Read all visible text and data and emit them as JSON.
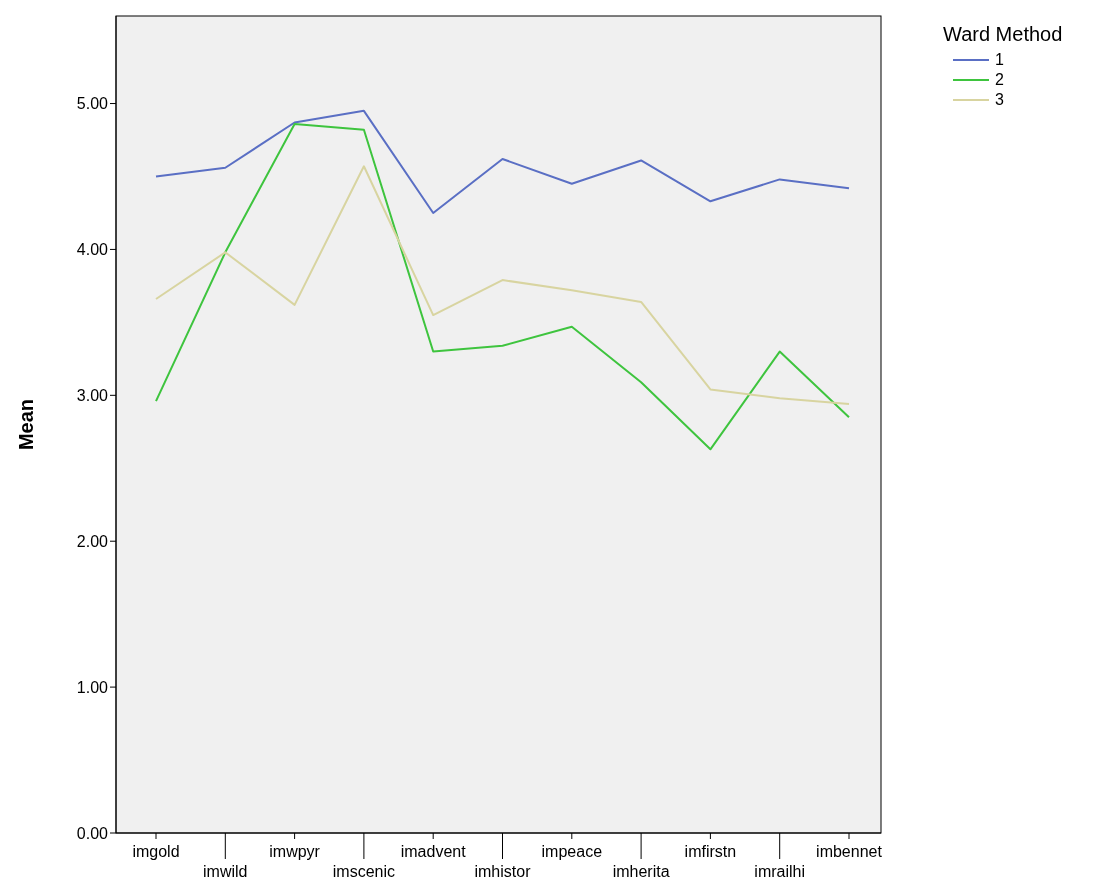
{
  "chart_data": {
    "type": "line",
    "ylabel": "Mean",
    "legend_title": "Ward Method",
    "categories": [
      "imgold",
      "imwild",
      "imwpyr",
      "imscenic",
      "imadvent",
      "imhistor",
      "impeace",
      "imherita",
      "imfirstn",
      "imrailhi",
      "imbennet"
    ],
    "series": [
      {
        "name": "1",
        "color": "#5a6fc4",
        "values": [
          4.5,
          4.56,
          4.87,
          4.95,
          4.25,
          4.62,
          4.45,
          4.61,
          4.33,
          4.48,
          4.42
        ]
      },
      {
        "name": "2",
        "color": "#3ec43e",
        "values": [
          2.96,
          3.98,
          4.86,
          4.82,
          3.3,
          3.34,
          3.47,
          3.09,
          2.63,
          3.3,
          2.85
        ]
      },
      {
        "name": "3",
        "color": "#d8d4a0",
        "values": [
          3.66,
          3.98,
          3.62,
          4.57,
          3.55,
          3.79,
          3.72,
          3.64,
          3.04,
          2.98,
          2.94
        ]
      }
    ],
    "ylim": [
      0,
      5.6
    ],
    "yticks": [
      {
        "value": 0,
        "label": "0.00"
      },
      {
        "value": 1,
        "label": "1.00"
      },
      {
        "value": 2,
        "label": "2.00"
      },
      {
        "value": 3,
        "label": "3.00"
      },
      {
        "value": 4,
        "label": "4.00"
      },
      {
        "value": 5,
        "label": "5.00"
      }
    ],
    "grid": false,
    "legend": "top right",
    "marker": "none",
    "line_style": "solid"
  }
}
